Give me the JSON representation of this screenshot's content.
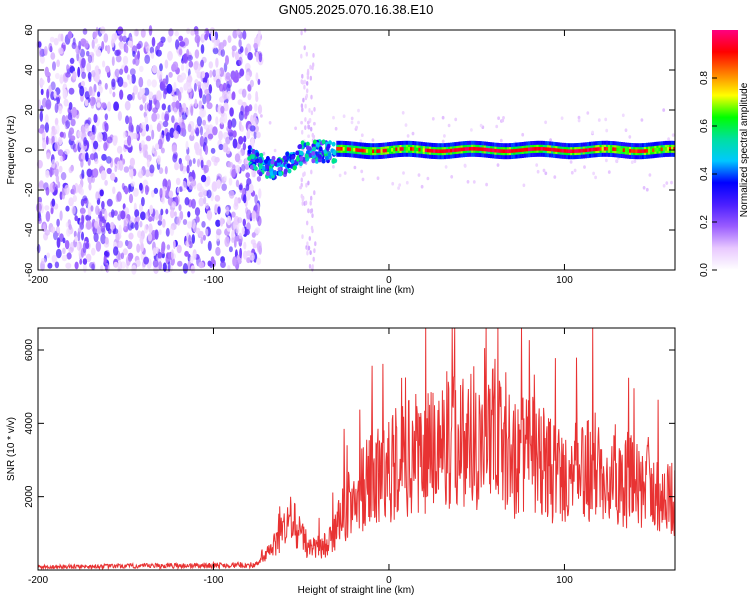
{
  "title": "GN05.2025.070.16.38.E10",
  "chart_data": [
    {
      "type": "heatmap",
      "xlabel": "Height of straight line (km)",
      "ylabel": "Frequency (Hz)",
      "xlim": [
        -200,
        163
      ],
      "ylim": [
        -60,
        60
      ],
      "xticks": [
        -200,
        -100,
        0,
        100
      ],
      "yticks": [
        60,
        40,
        20,
        0,
        -20,
        -40,
        -60
      ],
      "colorbar": {
        "label": "Normalized spectral amplitude",
        "range": [
          0,
          1
        ],
        "ticks": [
          "0.0",
          "0.2",
          "0.4",
          "0.6",
          "0.8"
        ],
        "colors": [
          "#ffffff",
          "#e8c8ff",
          "#9a5cff",
          "#4b1fff",
          "#0000ff",
          "#00c8ff",
          "#00e0a0",
          "#00ff00",
          "#ffff00",
          "#ff8000",
          "#ff0000",
          "#ff0080"
        ]
      },
      "regions": [
        {
          "name": "noise",
          "x_range": [
            -200,
            -73
          ],
          "freq_range": [
            -60,
            60
          ],
          "amplitude_range": [
            0.05,
            0.3
          ]
        },
        {
          "name": "transition",
          "x_range": [
            -80,
            -30
          ],
          "freq_center": -5,
          "amplitude_range": [
            0.2,
            0.6
          ]
        },
        {
          "name": "carrier",
          "x_range": [
            -30,
            163
          ],
          "freq_center": 0,
          "amplitude_range": [
            0.7,
            1.0
          ]
        }
      ]
    },
    {
      "type": "line",
      "xlabel": "Height of straight line (km)",
      "ylabel": "SNR (10 * v/v)",
      "xlim": [
        -200,
        163
      ],
      "ylim": [
        0,
        6600
      ],
      "xticks": [
        -200,
        -100,
        0,
        100
      ],
      "yticks": [
        2000,
        4000,
        6000
      ],
      "color": "#e83232",
      "envelope": {
        "x": [
          -200,
          -75,
          -65,
          -55,
          -45,
          -35,
          -20,
          -10,
          0,
          10,
          20,
          30,
          40,
          50,
          60,
          70,
          80,
          90,
          100,
          110,
          120,
          130,
          140,
          150,
          163
        ],
        "y": [
          80,
          130,
          900,
          1800,
          700,
          900,
          2600,
          3100,
          3600,
          3900,
          4200,
          4500,
          4700,
          4600,
          4900,
          3900,
          4100,
          3600,
          3200,
          3500,
          3700,
          3400,
          3000,
          2800,
          2400
        ]
      }
    }
  ]
}
